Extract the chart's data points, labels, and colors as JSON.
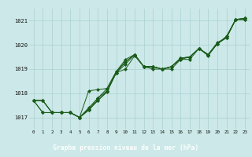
{
  "title": "Graphe pression niveau de la mer (hPa)",
  "bg_color": "#cce8e8",
  "plot_bg_color": "#cce8e8",
  "bottom_bar_color": "#2d6e2d",
  "line_color": "#1a5c1a",
  "marker_color": "#1a5c1a",
  "grid_color": "#aad0d0",
  "xlim": [
    -0.5,
    23.5
  ],
  "ylim": [
    1016.5,
    1021.5
  ],
  "yticks": [
    1017,
    1018,
    1019,
    1020,
    1021
  ],
  "xticks": [
    0,
    1,
    2,
    3,
    4,
    5,
    6,
    7,
    8,
    9,
    10,
    11,
    12,
    13,
    14,
    15,
    16,
    17,
    18,
    19,
    20,
    21,
    22,
    23
  ],
  "series": [
    [
      1017.7,
      1017.7,
      1017.2,
      1017.2,
      1017.2,
      1017.0,
      1017.3,
      1017.8,
      1018.1,
      1018.85,
      1019.0,
      1019.55,
      1019.1,
      1019.1,
      1019.0,
      1019.1,
      1019.4,
      1019.4,
      1019.85,
      1019.6,
      1020.1,
      1020.3,
      1021.05,
      1021.1
    ],
    [
      1017.7,
      1017.7,
      1017.2,
      1017.2,
      1017.2,
      1017.0,
      1017.3,
      1017.7,
      1018.05,
      1018.85,
      1019.2,
      1019.6,
      1019.1,
      1019.0,
      1019.0,
      1019.0,
      1019.4,
      1019.5,
      1019.85,
      1019.55,
      1020.05,
      1020.3,
      1021.05,
      1021.1
    ],
    [
      1017.7,
      1017.7,
      1017.2,
      1017.2,
      1017.2,
      1017.0,
      1017.35,
      1017.7,
      1018.1,
      1018.85,
      1019.3,
      1019.6,
      1019.1,
      1019.1,
      1019.0,
      1019.1,
      1019.45,
      1019.5,
      1019.85,
      1019.6,
      1020.05,
      1020.3,
      1021.05,
      1021.1
    ],
    [
      1017.7,
      1017.2,
      1017.2,
      1017.2,
      1017.2,
      1017.0,
      1017.4,
      1017.8,
      1018.2,
      1018.9,
      1019.3,
      1019.6,
      1019.1,
      1019.1,
      1019.0,
      1019.1,
      1019.45,
      1019.5,
      1019.85,
      1019.6,
      1020.05,
      1020.35,
      1021.05,
      1021.05
    ],
    [
      1017.7,
      1017.2,
      1017.2,
      1017.2,
      1017.2,
      1017.0,
      1018.1,
      1018.15,
      1018.2,
      1018.9,
      1019.4,
      1019.6,
      1019.1,
      1019.1,
      1019.0,
      1019.1,
      1019.45,
      1019.5,
      1019.85,
      1019.6,
      1020.05,
      1020.35,
      1021.05,
      1021.05
    ]
  ]
}
